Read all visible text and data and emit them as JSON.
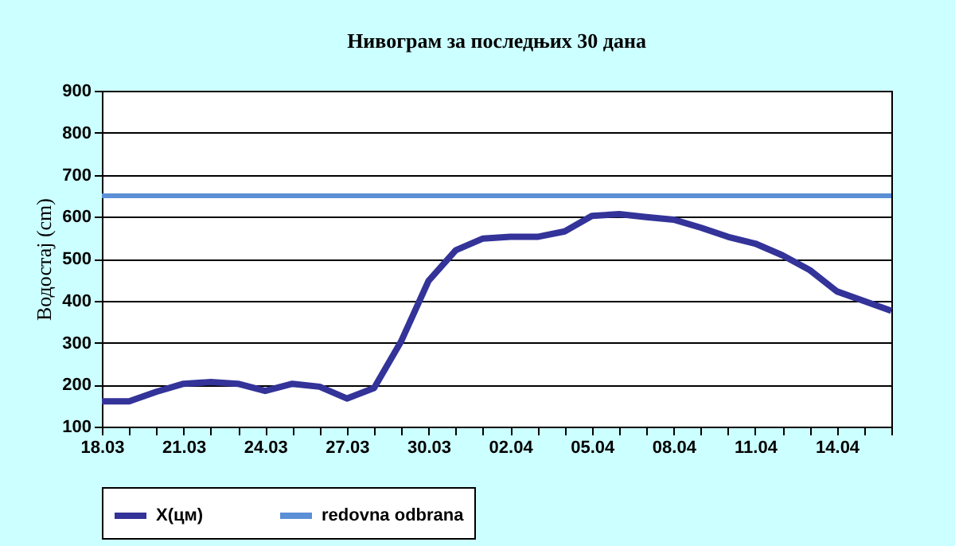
{
  "chart_data": {
    "type": "line",
    "title": "Нивограм за последњих 30 дана",
    "ylabel": "Водостај (cm)",
    "categories": [
      "18.03",
      null,
      null,
      "21.03",
      null,
      null,
      "24.03",
      null,
      null,
      "27.03",
      null,
      null,
      "30.03",
      null,
      null,
      "02.04",
      null,
      null,
      "05.04",
      null,
      null,
      "08.04",
      null,
      null,
      "11.04",
      null,
      null,
      "14.04",
      null,
      null
    ],
    "series": [
      {
        "name": "X(цм)",
        "color": "#333399",
        "values": [
          160,
          160,
          183,
          202,
          206,
          202,
          185,
          202,
          195,
          167,
          192,
          304,
          447,
          520,
          548,
          552,
          552,
          565,
          602,
          606,
          599,
          593,
          574,
          552,
          536,
          508,
          473,
          422,
          399,
          376
        ]
      }
    ],
    "ref_lines": [
      {
        "axis": "y",
        "value": 650,
        "label": "redovna odbrana",
        "color": "#5b8fd6"
      }
    ],
    "ylim": [
      100,
      900
    ],
    "yticks": [
      100,
      200,
      300,
      400,
      500,
      600,
      700,
      800,
      900
    ],
    "grid": "y",
    "legend": "bottom",
    "marker": "none",
    "line_style": "solid"
  }
}
